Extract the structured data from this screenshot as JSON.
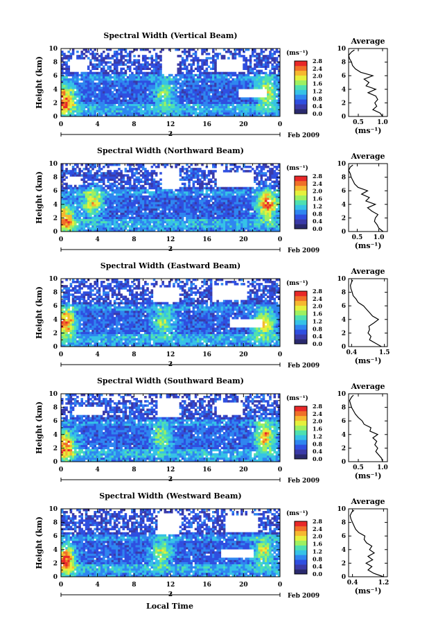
{
  "figure": {
    "xlabel": "Local Time",
    "date_label": "Feb 2009",
    "day_label": "2",
    "colorbar_unit": "(ms⁻¹)",
    "average_title": "Average",
    "average_xlabel": "(ms⁻¹)",
    "ylabel": "Height (km)"
  },
  "colors": {
    "scale": [
      "#2a2a6e",
      "#3a3aa8",
      "#2f4fe0",
      "#2f86f0",
      "#36c2e6",
      "#4fe0b0",
      "#9ef060",
      "#e6f03c",
      "#f6b830",
      "#f07028",
      "#e82828"
    ]
  },
  "chart_data": [
    {
      "type": "heatmap",
      "title": "Spectral Width (Vertical Beam)",
      "x_ticks": [
        "0",
        "4",
        "8",
        "12",
        "16",
        "20",
        "0"
      ],
      "x_range": [
        0,
        24
      ],
      "y_ticks": [
        "0",
        "2",
        "4",
        "6",
        "8",
        "10"
      ],
      "y_range": [
        0,
        10
      ],
      "colorbar_ticks": [
        "0.0",
        "0.4",
        "0.8",
        "1.2",
        "1.6",
        "2.0",
        "2.4",
        "2.8"
      ],
      "colorbar_range": [
        0,
        2.8
      ],
      "hotspots": [
        {
          "t": 0.4,
          "h": 2.5,
          "v": 2.6
        },
        {
          "t": 11.3,
          "h": 3.4,
          "v": 1.6
        },
        {
          "t": 22.5,
          "h": 3.6,
          "v": 1.9
        }
      ],
      "gaps": [
        {
          "t0": 1.0,
          "t1": 2.8,
          "h0": 6.6,
          "h1": 8.4
        },
        {
          "t0": 11.0,
          "t1": 12.8,
          "h0": 6.2,
          "h1": 9.6
        },
        {
          "t0": 17.0,
          "t1": 20.0,
          "h0": 6.6,
          "h1": 8.4
        },
        {
          "t0": 19.5,
          "t1": 22.5,
          "h0": 2.8,
          "h1": 4.2
        }
      ],
      "average": {
        "x_ticks": [
          "0.5",
          "1.0"
        ],
        "x_range": [
          0.3,
          1.1
        ],
        "y_range": [
          0,
          10
        ],
        "height": [
          0.0,
          0.5,
          1.0,
          1.5,
          2.0,
          2.5,
          3.0,
          3.5,
          4.0,
          4.5,
          5.0,
          5.5,
          6.0,
          6.5,
          7.0,
          7.5,
          8.0,
          8.5,
          9.0,
          9.5,
          9.8
        ],
        "value": [
          1.0,
          0.95,
          0.8,
          0.88,
          0.84,
          0.9,
          0.86,
          0.7,
          0.86,
          0.66,
          0.72,
          0.62,
          0.8,
          0.55,
          0.44,
          0.38,
          0.36,
          0.32,
          0.3,
          0.36,
          0.42
        ]
      }
    },
    {
      "type": "heatmap",
      "title": "Spectral Width (Northward Beam)",
      "x_ticks": [
        "0",
        "4",
        "8",
        "12",
        "16",
        "20",
        "0"
      ],
      "x_range": [
        0,
        24
      ],
      "y_ticks": [
        "0",
        "2",
        "4",
        "6",
        "8",
        "10"
      ],
      "y_range": [
        0,
        10
      ],
      "colorbar_ticks": [
        "0.0",
        "0.4",
        "0.8",
        "1.2",
        "1.6",
        "2.0",
        "2.4",
        "2.8"
      ],
      "colorbar_range": [
        0,
        2.8
      ],
      "hotspots": [
        {
          "t": 0.4,
          "h": 2.0,
          "v": 2.3
        },
        {
          "t": 3.5,
          "h": 4.4,
          "v": 2.0
        },
        {
          "t": 22.6,
          "h": 4.0,
          "v": 2.6
        }
      ],
      "gaps": [
        {
          "t0": 11.0,
          "t1": 13.0,
          "h0": 6.4,
          "h1": 9.4
        },
        {
          "t0": 17.0,
          "t1": 21.0,
          "h0": 6.6,
          "h1": 8.8
        },
        {
          "t0": 0.8,
          "t1": 2.2,
          "h0": 6.8,
          "h1": 8.2
        }
      ],
      "average": {
        "x_ticks": [
          "0.5",
          "1.0"
        ],
        "x_range": [
          0.3,
          1.2
        ],
        "y_range": [
          0,
          10
        ],
        "height": [
          0.0,
          0.5,
          1.0,
          1.5,
          2.0,
          2.5,
          3.0,
          3.5,
          4.0,
          4.5,
          5.0,
          5.5,
          6.0,
          6.5,
          7.0,
          7.5,
          8.0,
          8.5,
          9.0,
          9.5,
          9.8
        ],
        "value": [
          1.1,
          1.0,
          0.96,
          0.9,
          0.92,
          0.98,
          0.84,
          0.74,
          0.92,
          0.7,
          0.78,
          0.6,
          0.74,
          0.52,
          0.44,
          0.4,
          0.36,
          0.34,
          0.3,
          0.34,
          0.4
        ]
      }
    },
    {
      "type": "heatmap",
      "title": "Spectral Width (Eastward Beam)",
      "x_ticks": [
        "0",
        "4",
        "8",
        "12",
        "16",
        "20",
        "0"
      ],
      "x_range": [
        0,
        24
      ],
      "y_ticks": [
        "0",
        "2",
        "4",
        "6",
        "8",
        "10"
      ],
      "y_range": [
        0,
        10
      ],
      "colorbar_ticks": [
        "0.0",
        "0.4",
        "0.8",
        "1.2",
        "1.6",
        "2.0",
        "2.4",
        "2.8"
      ],
      "colorbar_range": [
        0,
        2.8
      ],
      "hotspots": [
        {
          "t": 0.4,
          "h": 3.6,
          "v": 2.6
        },
        {
          "t": 11.2,
          "h": 3.6,
          "v": 1.6
        },
        {
          "t": 22.3,
          "h": 3.4,
          "v": 2.0
        }
      ],
      "gaps": [
        {
          "t0": 10.0,
          "t1": 13.0,
          "h0": 6.6,
          "h1": 8.8
        },
        {
          "t0": 16.5,
          "t1": 20.5,
          "h0": 6.8,
          "h1": 9.0
        },
        {
          "t0": 18.5,
          "t1": 22.0,
          "h0": 2.8,
          "h1": 4.2
        }
      ],
      "average": {
        "x_ticks": [
          "0.4",
          "1.5"
        ],
        "x_range": [
          0.3,
          1.6
        ],
        "y_range": [
          0,
          10
        ],
        "height": [
          0.0,
          0.5,
          1.0,
          1.5,
          2.0,
          2.5,
          3.0,
          3.5,
          4.0,
          4.5,
          5.0,
          5.5,
          6.0,
          6.5,
          7.0,
          7.5,
          8.0,
          8.5,
          9.0,
          9.5,
          9.8
        ],
        "value": [
          1.4,
          1.2,
          1.0,
          1.05,
          0.95,
          1.0,
          0.98,
          1.15,
          1.3,
          1.1,
          1.0,
          0.9,
          0.8,
          0.62,
          0.55,
          0.45,
          0.42,
          0.38,
          0.36,
          0.4,
          0.44
        ]
      }
    },
    {
      "type": "heatmap",
      "title": "Spectral Width (Southward Beam)",
      "x_ticks": [
        "0",
        "4",
        "8",
        "12",
        "16",
        "20",
        "0"
      ],
      "x_range": [
        0,
        24
      ],
      "y_ticks": [
        "0",
        "2",
        "4",
        "6",
        "8",
        "10"
      ],
      "y_range": [
        0,
        10
      ],
      "colorbar_ticks": [
        "0.0",
        "0.4",
        "0.8",
        "1.2",
        "1.6",
        "2.0",
        "2.4",
        "2.8"
      ],
      "colorbar_range": [
        0,
        2.8
      ],
      "hotspots": [
        {
          "t": 0.4,
          "h": 2.4,
          "v": 2.5
        },
        {
          "t": 11.0,
          "h": 3.6,
          "v": 1.6
        },
        {
          "t": 22.4,
          "h": 3.8,
          "v": 2.2
        }
      ],
      "gaps": [
        {
          "t0": 10.5,
          "t1": 13.0,
          "h0": 6.6,
          "h1": 9.4
        },
        {
          "t0": 17.0,
          "t1": 20.0,
          "h0": 6.8,
          "h1": 8.6
        },
        {
          "t0": 1.5,
          "t1": 4.5,
          "h0": 6.8,
          "h1": 8.0
        }
      ],
      "average": {
        "x_ticks": [
          "0.5",
          "1.0"
        ],
        "x_range": [
          0.3,
          1.1
        ],
        "y_range": [
          0,
          10
        ],
        "height": [
          0.0,
          0.5,
          1.0,
          1.5,
          2.0,
          2.5,
          3.0,
          3.5,
          4.0,
          4.5,
          5.0,
          5.5,
          6.0,
          6.5,
          7.0,
          7.5,
          8.0,
          8.5,
          9.0,
          9.5,
          9.8
        ],
        "value": [
          1.0,
          0.98,
          0.92,
          0.86,
          0.9,
          0.84,
          0.88,
          0.8,
          0.9,
          0.74,
          0.76,
          0.62,
          0.58,
          0.5,
          0.44,
          0.4,
          0.36,
          0.34,
          0.32,
          0.36,
          0.4
        ]
      }
    },
    {
      "type": "heatmap",
      "title": "Spectral Width (Westward Beam)",
      "x_ticks": [
        "0",
        "4",
        "8",
        "12",
        "16",
        "20",
        "0"
      ],
      "x_range": [
        0,
        24
      ],
      "y_ticks": [
        "0",
        "2",
        "4",
        "6",
        "8",
        "10"
      ],
      "y_range": [
        0,
        10
      ],
      "colorbar_ticks": [
        "0.0",
        "0.4",
        "0.8",
        "1.2",
        "1.6",
        "2.0",
        "2.4",
        "2.8"
      ],
      "colorbar_range": [
        0,
        2.8
      ],
      "hotspots": [
        {
          "t": 0.4,
          "h": 2.6,
          "v": 2.6
        },
        {
          "t": 11.0,
          "h": 3.6,
          "v": 1.7
        },
        {
          "t": 22.2,
          "h": 3.8,
          "v": 1.9
        }
      ],
      "gaps": [
        {
          "t0": 10.5,
          "t1": 13.0,
          "h0": 6.4,
          "h1": 9.4
        },
        {
          "t0": 18.0,
          "t1": 21.5,
          "h0": 6.6,
          "h1": 9.0
        },
        {
          "t0": 17.5,
          "t1": 21.0,
          "h0": 2.8,
          "h1": 4.0
        }
      ],
      "average": {
        "x_ticks": [
          "0.4",
          "1.2"
        ],
        "x_range": [
          0.3,
          1.3
        ],
        "y_range": [
          0,
          10
        ],
        "height": [
          0.0,
          0.5,
          1.0,
          1.5,
          2.0,
          2.5,
          3.0,
          3.5,
          4.0,
          4.5,
          5.0,
          5.5,
          6.0,
          6.5,
          7.0,
          7.5,
          8.0,
          8.5,
          9.0,
          9.5,
          9.8
        ],
        "value": [
          1.2,
          0.95,
          0.8,
          0.9,
          0.75,
          0.92,
          0.8,
          0.96,
          0.84,
          0.9,
          0.76,
          0.7,
          0.72,
          0.56,
          0.48,
          0.44,
          0.4,
          0.36,
          0.34,
          0.38,
          0.44
        ]
      }
    }
  ]
}
